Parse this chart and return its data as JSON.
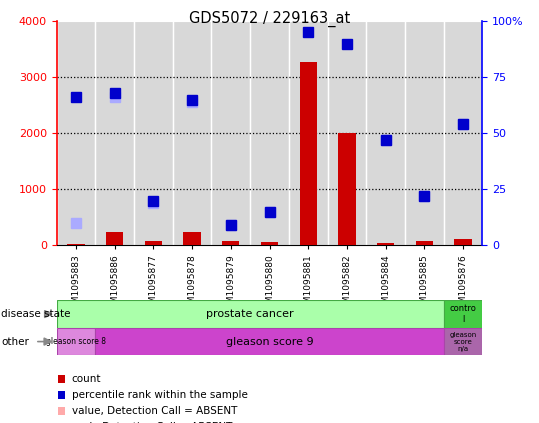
{
  "title": "GDS5072 / 229163_at",
  "samples": [
    "GSM1095883",
    "GSM1095886",
    "GSM1095877",
    "GSM1095878",
    "GSM1095879",
    "GSM1095880",
    "GSM1095881",
    "GSM1095882",
    "GSM1095884",
    "GSM1095885",
    "GSM1095876"
  ],
  "count_values": [
    30,
    230,
    70,
    230,
    70,
    60,
    3270,
    2000,
    50,
    70,
    120
  ],
  "percentile_right": [
    66,
    68,
    20,
    65,
    9,
    15,
    95,
    90,
    47,
    22,
    54
  ],
  "rank_absent_right": [
    10,
    66,
    19,
    64,
    9,
    15,
    null,
    null,
    47,
    22,
    54
  ],
  "value_absent_right": [
    null,
    null,
    null,
    null,
    null,
    null,
    null,
    null,
    null,
    null,
    null
  ],
  "count_color": "#cc0000",
  "percentile_color": "#0000cc",
  "rank_absent_color": "#aaaaff",
  "value_absent_color": "#ffaaaa",
  "ylim_left": [
    0,
    4000
  ],
  "ylim_right": [
    0,
    100
  ],
  "col_bg_even": "#d4d4d4",
  "col_bg_odd": "#c0c0c0",
  "plot_bg": "#d8d8d8",
  "disease_state_pc_color": "#aaffaa",
  "disease_state_ctrl_color": "#44cc44",
  "gs8_color": "#dd88dd",
  "gs9_color": "#cc44cc",
  "gsna_color": "#aa66aa",
  "border_color": "#888888"
}
